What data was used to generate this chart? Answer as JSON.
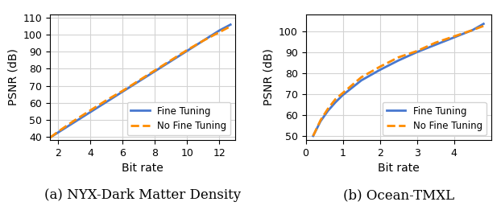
{
  "left": {
    "caption": "(a) NYX-Dark Matter Density",
    "xlabel": "Bit rate",
    "ylabel": "PSNR (dB)",
    "xlim": [
      1.5,
      13.0
    ],
    "ylim": [
      38,
      112
    ],
    "yticks": [
      40,
      50,
      60,
      70,
      80,
      90,
      100,
      110
    ],
    "xticks": [
      2,
      4,
      6,
      8,
      10,
      12
    ],
    "fine_tuning_x": [
      1.5,
      2,
      3,
      4,
      5,
      6,
      7,
      8,
      9,
      10,
      11,
      12,
      12.7
    ],
    "fine_tuning_y": [
      39.5,
      42.5,
      48.5,
      54.5,
      60.5,
      66.5,
      72.5,
      78.5,
      84.5,
      90.5,
      96.5,
      102.5,
      106.0
    ],
    "no_fine_tuning_x": [
      1.5,
      2,
      3,
      4,
      5,
      6,
      7,
      8,
      9,
      10,
      11,
      12,
      12.7
    ],
    "no_fine_tuning_y": [
      39.5,
      43.0,
      49.5,
      55.5,
      61.5,
      67.0,
      73.0,
      79.0,
      85.0,
      91.0,
      96.5,
      101.5,
      105.0
    ]
  },
  "right": {
    "caption": "(b) Ocean-TMXL",
    "xlabel": "Bit rate",
    "ylabel": "PSNR (dB)",
    "xlim": [
      0,
      5
    ],
    "ylim": [
      48,
      108
    ],
    "yticks": [
      50,
      60,
      70,
      80,
      90,
      100
    ],
    "xticks": [
      0,
      1,
      2,
      3,
      4
    ],
    "fine_tuning_x": [
      0.2,
      0.4,
      0.6,
      0.8,
      1.0,
      1.5,
      2.0,
      2.5,
      3.0,
      3.5,
      4.0,
      4.5,
      4.8
    ],
    "fine_tuning_y": [
      50.0,
      57.0,
      62.0,
      66.0,
      69.5,
      76.5,
      81.5,
      86.0,
      90.0,
      93.5,
      97.0,
      100.5,
      103.5
    ],
    "no_fine_tuning_x": [
      0.2,
      0.4,
      0.6,
      0.8,
      1.0,
      1.5,
      2.0,
      2.5,
      3.0,
      3.5,
      4.0,
      4.5,
      4.8
    ],
    "no_fine_tuning_y": [
      50.0,
      57.5,
      63.0,
      67.5,
      70.5,
      78.0,
      83.0,
      87.5,
      90.5,
      94.5,
      97.5,
      100.5,
      102.5
    ]
  },
  "fine_tuning_color": "#4878cf",
  "no_fine_tuning_color": "#ff8c00",
  "fine_tuning_label": "Fine Tuning",
  "no_fine_tuning_label": "No Fine Tuning",
  "line_width": 2.0,
  "caption_fontsize": 12,
  "label_fontsize": 10,
  "tick_fontsize": 9,
  "legend_fontsize": 8.5
}
